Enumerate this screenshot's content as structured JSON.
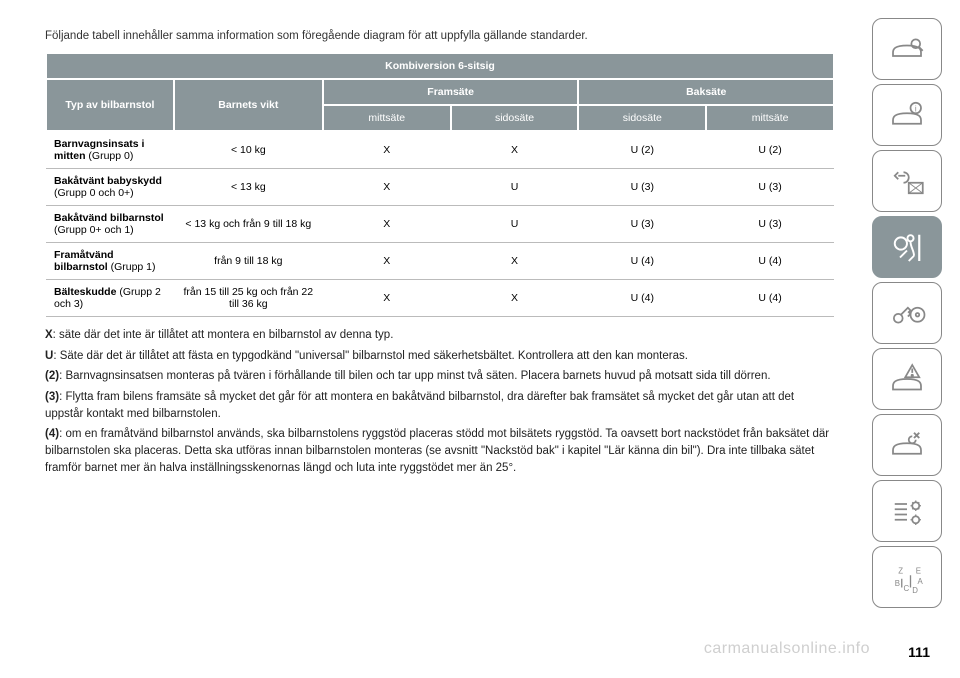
{
  "intro": "Följande tabell innehåller samma information som föregående diagram för att uppfylla gällande standarder.",
  "table": {
    "title": "Kombiversion 6-sitsig",
    "col_group_left": "Typ av bilbarnstol",
    "col_group_weight": "Barnets vikt",
    "col_front": "Framsäte",
    "col_rear": "Baksäte",
    "sub_mitt": "mittsäte",
    "sub_sido": "sidosäte",
    "rows": [
      {
        "label_bold": "Barnvagnsinsats i mitten",
        "label_rest": " (Grupp 0)",
        "weight": "< 10 kg",
        "v1": "X",
        "v2": "X",
        "v3": "U (2)",
        "v4": "U (2)"
      },
      {
        "label_bold": "Bakåtvänt babyskydd",
        "label_rest": " (Grupp 0 och 0+)",
        "weight": "< 13 kg",
        "v1": "X",
        "v2": "U",
        "v3": "U (3)",
        "v4": "U (3)"
      },
      {
        "label_bold": "Bakåtvänd bilbarnstol",
        "label_rest": " (Grupp 0+ och 1)",
        "weight": "< 13 kg och från 9 till 18 kg",
        "v1": "X",
        "v2": "U",
        "v3": "U (3)",
        "v4": "U (3)"
      },
      {
        "label_bold": "Framåtvänd bilbarnstol",
        "label_rest": " (Grupp 1)",
        "weight": "från 9 till 18 kg",
        "v1": "X",
        "v2": "X",
        "v3": "U (4)",
        "v4": "U (4)"
      },
      {
        "label_bold": "Bälteskudde",
        "label_rest": " (Grupp 2 och 3)",
        "weight": "från 15 till 25 kg och från 22 till 36 kg",
        "v1": "X",
        "v2": "X",
        "v3": "U (4)",
        "v4": "U (4)"
      }
    ]
  },
  "notes": {
    "x": "X: säte där det inte är tillåtet att montera en bilbarnstol av denna typ.",
    "u": "U: Säte där det är tillåtet att fästa en typgodkänd \"universal\" bilbarnstol med säkerhetsbältet. Kontrollera att den kan monteras.",
    "n2": "(2): Barnvagnsinsatsen monteras på tvären i förhållande till bilen och tar upp minst två säten. Placera barnets huvud på motsatt sida till dörren.",
    "n3": "(3): Flytta fram bilens framsäte så mycket det går för att montera en bakåtvänd bilbarnstol, dra därefter bak framsätet så mycket det går utan att det uppstår kontakt med bilbarnstolen.",
    "n4": "(4): om en framåtvänd bilbarnstol används, ska bilbarnstolens ryggstöd placeras stödd mot bilsätets ryggstöd. Ta oavsett bort nackstödet från baksätet där bilbarnstolen ska placeras. Detta ska utföras innan bilbarnstolen monteras (se avsnitt \"Nackstöd bak\" i kapitel \"Lär känna din bil\"). Dra inte tillbaka sätet framför barnet mer än halva inställningsskenornas längd och luta inte ryggstödet mer än 25°."
  },
  "page_number": "111",
  "watermark": "carmanualsonline.info",
  "colors": {
    "header_bg": "#8a969a",
    "header_fg": "#ffffff",
    "border": "#bbbbbb",
    "sidebar_stroke": "#888888"
  }
}
